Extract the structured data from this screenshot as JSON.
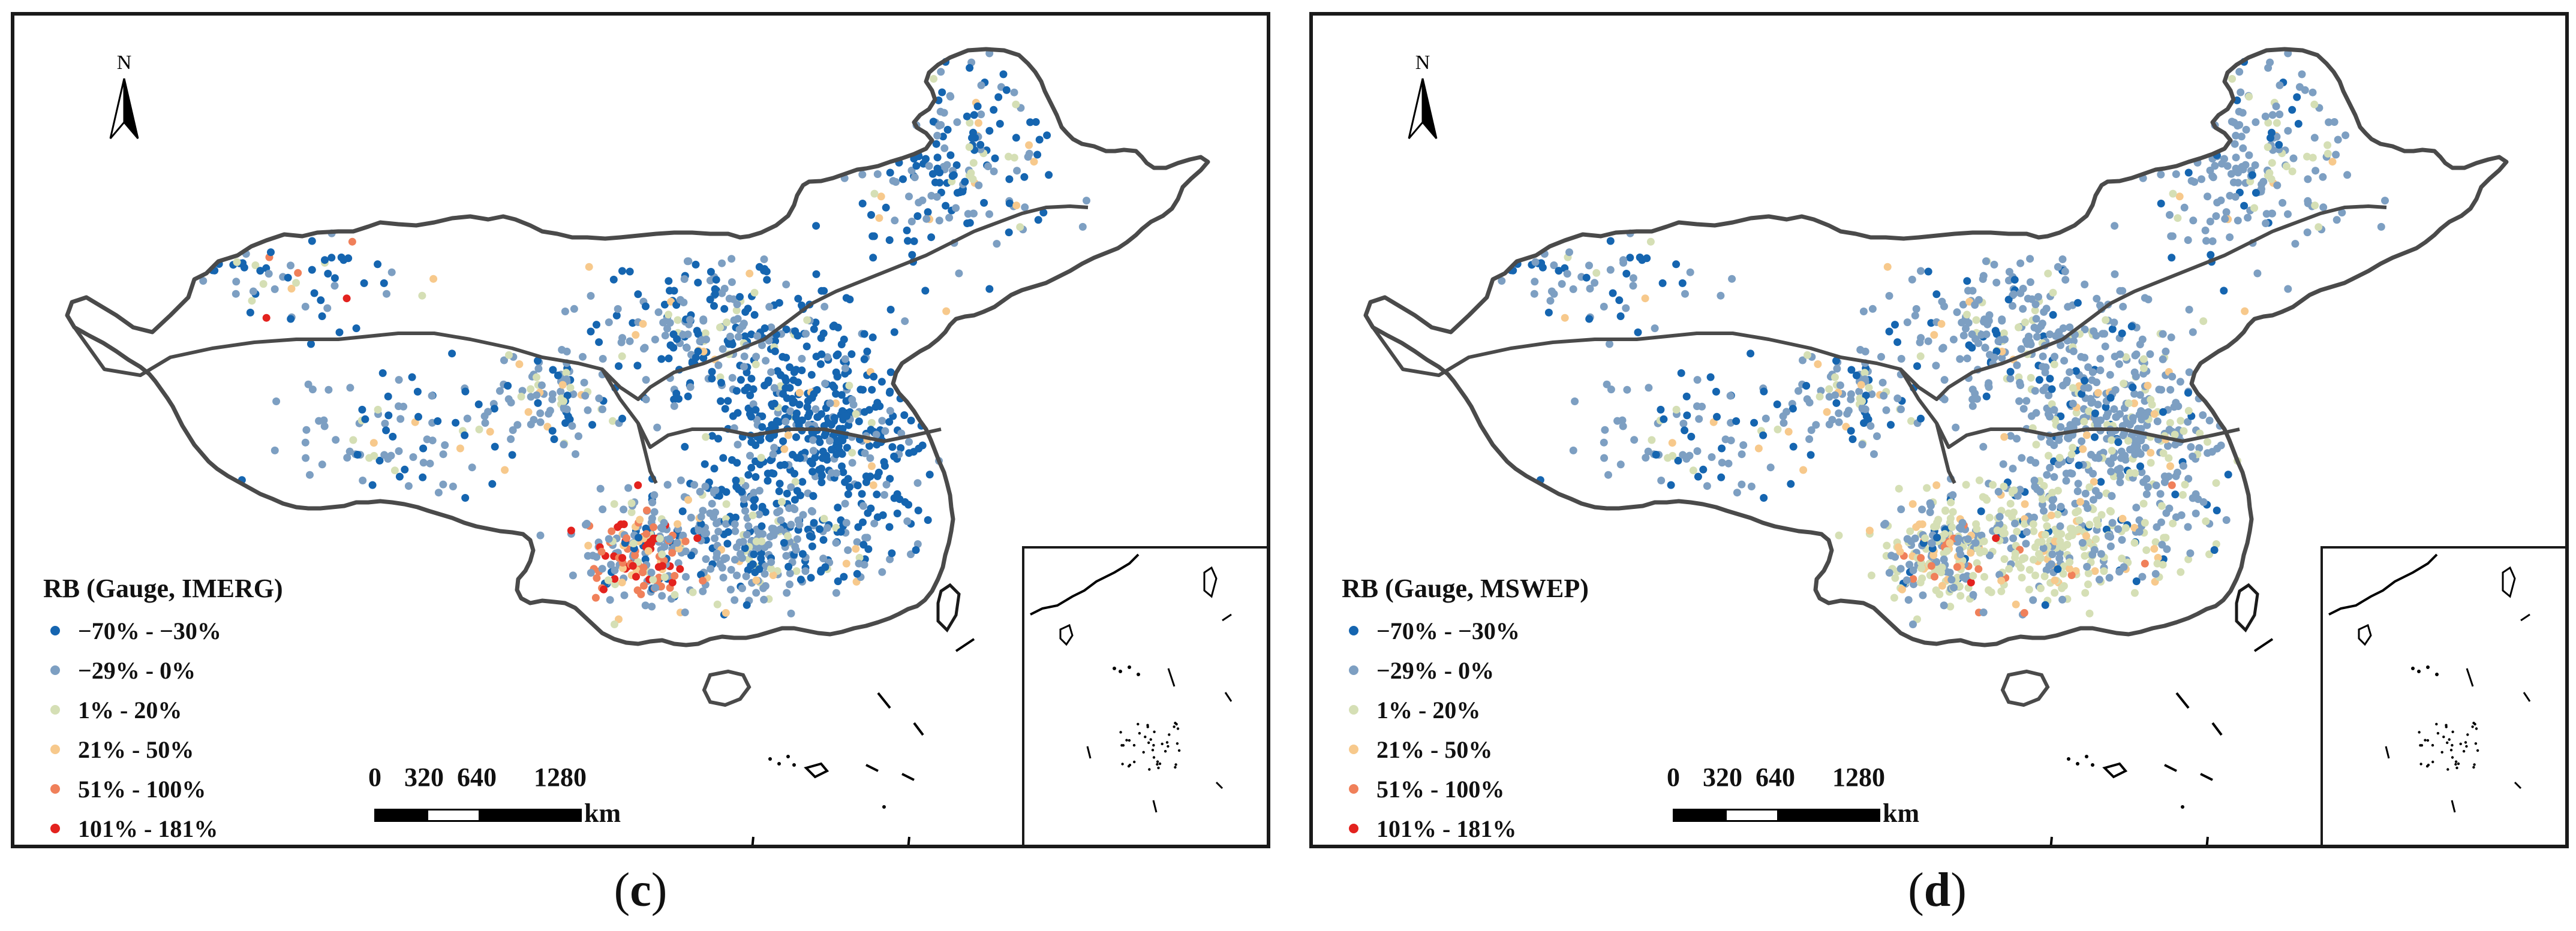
{
  "north_label": "N",
  "legend_classes": [
    {
      "label": "−70% - −30%",
      "color": "#1565b0"
    },
    {
      "label": "−29% - 0%",
      "color": "#7d9fc2"
    },
    {
      "label": "1% - 20%",
      "color": "#d5dfb5"
    },
    {
      "label": "21% - 50%",
      "color": "#f7c98c"
    },
    {
      "label": "51% - 100%",
      "color": "#f0805a"
    },
    {
      "label": "101% - 181%",
      "color": "#e3221e"
    }
  ],
  "scale_bar": {
    "ticks": [
      "0",
      "320",
      "640",
      "1280"
    ],
    "unit": "km"
  },
  "panels": [
    {
      "id": "c",
      "legend_title": "RB (Gauge, IMERG)",
      "caption_open": "(",
      "caption_letter": "c",
      "caption_close": ")"
    },
    {
      "id": "d",
      "legend_title": "RB (Gauge, MSWEP)",
      "caption_open": "(",
      "caption_letter": "d",
      "caption_close": ")"
    }
  ]
}
